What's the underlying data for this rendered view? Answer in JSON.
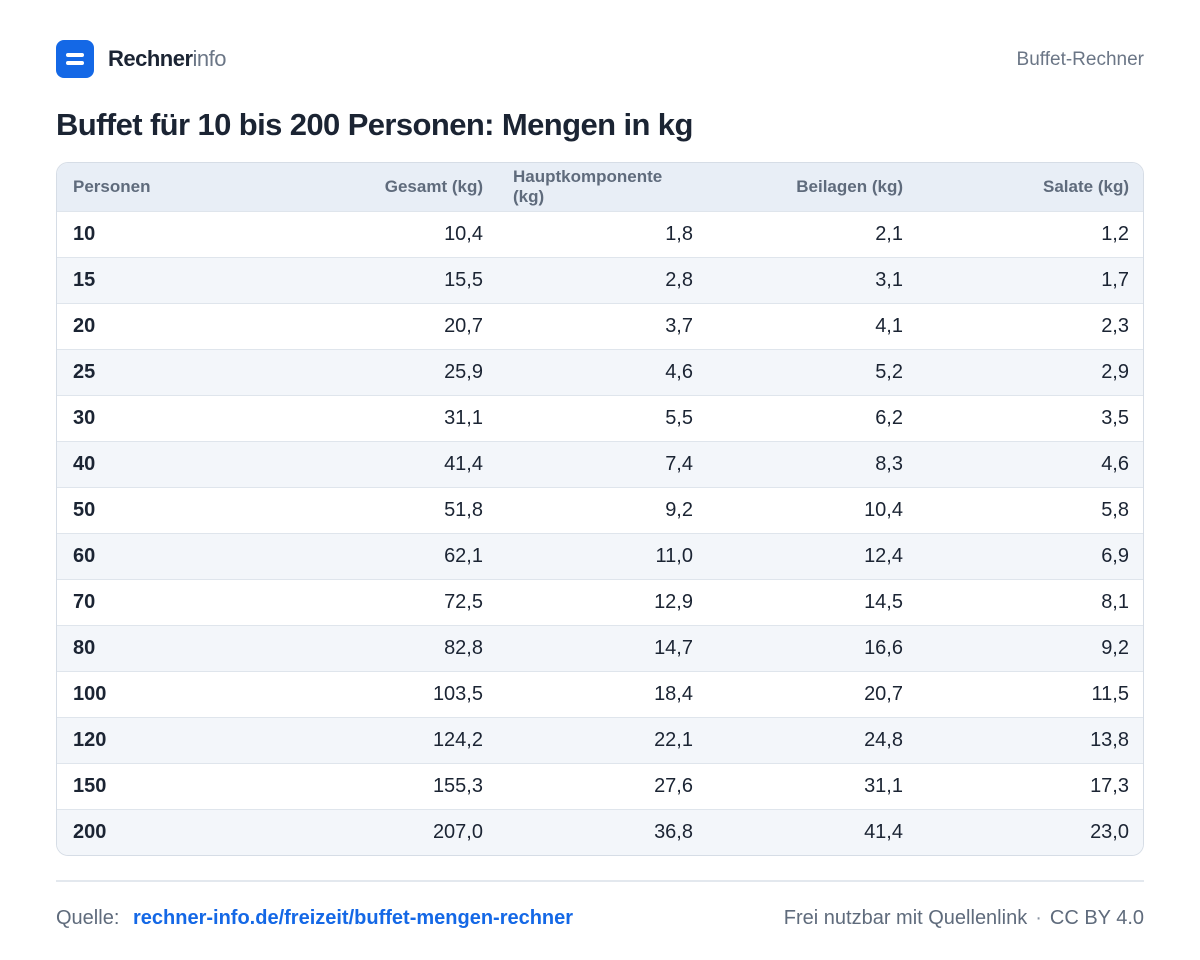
{
  "header": {
    "brand_strong": "Rechner",
    "brand_light": "info",
    "right_label": "Buffet-Rechner"
  },
  "title": "Buffet für 10 bis 200 Personen: Mengen in kg",
  "table": {
    "columns": [
      "Personen",
      "Gesamt (kg)",
      "Hauptkomponente (kg)",
      "Beilagen (kg)",
      "Salate (kg)"
    ],
    "rows": [
      [
        "10",
        "10,4",
        "1,8",
        "2,1",
        "1,2"
      ],
      [
        "15",
        "15,5",
        "2,8",
        "3,1",
        "1,7"
      ],
      [
        "20",
        "20,7",
        "3,7",
        "4,1",
        "2,3"
      ],
      [
        "25",
        "25,9",
        "4,6",
        "5,2",
        "2,9"
      ],
      [
        "30",
        "31,1",
        "5,5",
        "6,2",
        "3,5"
      ],
      [
        "40",
        "41,4",
        "7,4",
        "8,3",
        "4,6"
      ],
      [
        "50",
        "51,8",
        "9,2",
        "10,4",
        "5,8"
      ],
      [
        "60",
        "62,1",
        "11,0",
        "12,4",
        "6,9"
      ],
      [
        "70",
        "72,5",
        "12,9",
        "14,5",
        "8,1"
      ],
      [
        "80",
        "82,8",
        "14,7",
        "16,6",
        "9,2"
      ],
      [
        "100",
        "103,5",
        "18,4",
        "20,7",
        "11,5"
      ],
      [
        "120",
        "124,2",
        "22,1",
        "24,8",
        "13,8"
      ],
      [
        "150",
        "155,3",
        "27,6",
        "31,1",
        "17,3"
      ],
      [
        "200",
        "207,0",
        "36,8",
        "41,4",
        "23,0"
      ]
    ]
  },
  "footer": {
    "source_label": "Quelle:",
    "source_link": "rechner-info.de/freizeit/buffet-mengen-rechner",
    "license_text": "Frei nutzbar mit Quellenlink",
    "separator": "·",
    "license": "CC BY 4.0"
  },
  "colors": {
    "accent": "#1468e6",
    "header_bg": "#e8eef6",
    "stripe_bg": "#f3f6fa"
  }
}
